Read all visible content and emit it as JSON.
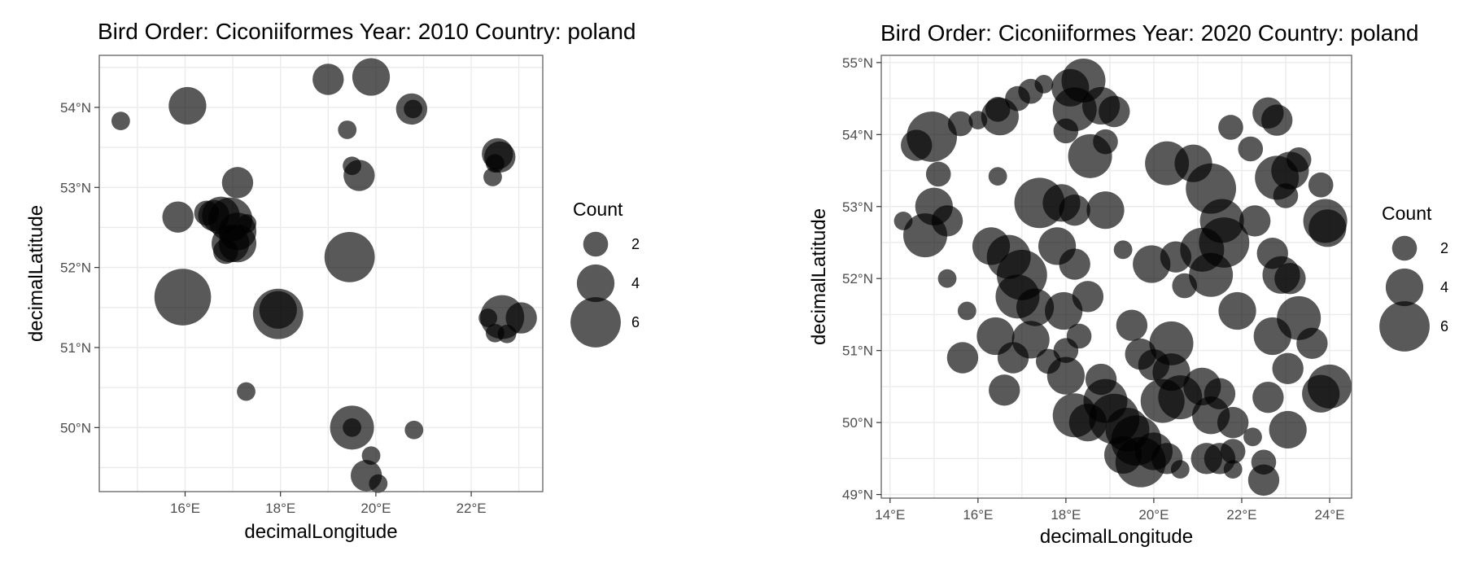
{
  "chart_data": [
    {
      "type": "scatter",
      "title": "Bird Order: Ciconiiformes Year: 2010 Country: poland",
      "xlabel": "decimalLongitude",
      "ylabel": "decimalLatitude",
      "xlim": [
        14.2,
        23.5
      ],
      "ylim": [
        49.2,
        54.65
      ],
      "xticks": [
        16,
        18,
        20,
        22
      ],
      "xtick_labels": [
        "16°E",
        "18°E",
        "20°E",
        "22°E"
      ],
      "yticks": [
        50,
        51,
        52,
        53,
        54
      ],
      "ytick_labels": [
        "50°N",
        "51°N",
        "52°N",
        "53°N",
        "54°N"
      ],
      "grid": true,
      "point_color": "#000000",
      "point_alpha": 0.65,
      "legend": {
        "title": "Count",
        "placement": "right",
        "sizes": [
          2,
          4,
          6
        ],
        "labels": [
          "2",
          "4",
          "6"
        ]
      },
      "points": [
        {
          "x": 14.65,
          "y": 53.83,
          "size": 1
        },
        {
          "x": 16.05,
          "y": 54.02,
          "size": 4
        },
        {
          "x": 19.0,
          "y": 54.35,
          "size": 3
        },
        {
          "x": 19.9,
          "y": 54.38,
          "size": 4
        },
        {
          "x": 20.75,
          "y": 53.98,
          "size": 3
        },
        {
          "x": 20.78,
          "y": 53.98,
          "size": 1
        },
        {
          "x": 19.4,
          "y": 53.72,
          "size": 1
        },
        {
          "x": 17.1,
          "y": 53.06,
          "size": 3
        },
        {
          "x": 19.5,
          "y": 53.27,
          "size": 1
        },
        {
          "x": 19.65,
          "y": 53.15,
          "size": 3
        },
        {
          "x": 22.55,
          "y": 53.42,
          "size": 3
        },
        {
          "x": 22.6,
          "y": 53.38,
          "size": 3
        },
        {
          "x": 22.5,
          "y": 53.3,
          "size": 1
        },
        {
          "x": 22.45,
          "y": 53.13,
          "size": 1
        },
        {
          "x": 15.85,
          "y": 52.63,
          "size": 3
        },
        {
          "x": 16.45,
          "y": 52.68,
          "size": 2
        },
        {
          "x": 16.6,
          "y": 52.65,
          "size": 3
        },
        {
          "x": 16.75,
          "y": 52.65,
          "size": 4
        },
        {
          "x": 16.95,
          "y": 52.6,
          "size": 5
        },
        {
          "x": 17.1,
          "y": 52.45,
          "size": 4
        },
        {
          "x": 17.3,
          "y": 52.55,
          "size": 1
        },
        {
          "x": 16.95,
          "y": 52.3,
          "size": 4
        },
        {
          "x": 17.1,
          "y": 52.3,
          "size": 4
        },
        {
          "x": 16.85,
          "y": 52.2,
          "size": 2
        },
        {
          "x": 19.45,
          "y": 52.13,
          "size": 6
        },
        {
          "x": 15.95,
          "y": 51.63,
          "size": 7
        },
        {
          "x": 17.95,
          "y": 51.42,
          "size": 6
        },
        {
          "x": 17.95,
          "y": 51.47,
          "size": 4
        },
        {
          "x": 22.35,
          "y": 51.37,
          "size": 1
        },
        {
          "x": 22.65,
          "y": 51.38,
          "size": 5
        },
        {
          "x": 23.05,
          "y": 51.37,
          "size": 3
        },
        {
          "x": 22.5,
          "y": 51.18,
          "size": 1
        },
        {
          "x": 22.75,
          "y": 51.17,
          "size": 1
        },
        {
          "x": 17.28,
          "y": 50.45,
          "size": 1
        },
        {
          "x": 19.5,
          "y": 50.0,
          "size": 5
        },
        {
          "x": 19.5,
          "y": 50.0,
          "size": 1
        },
        {
          "x": 20.8,
          "y": 49.97,
          "size": 1
        },
        {
          "x": 19.9,
          "y": 49.65,
          "size": 1
        },
        {
          "x": 19.8,
          "y": 49.4,
          "size": 3
        },
        {
          "x": 20.05,
          "y": 49.3,
          "size": 1
        }
      ]
    },
    {
      "type": "scatter",
      "title": "Bird Order: Ciconiiformes Year: 2020 Country: poland",
      "xlabel": "decimalLongitude",
      "ylabel": "decimalLatitude",
      "xlim": [
        13.8,
        24.5
      ],
      "ylim": [
        48.95,
        55.1
      ],
      "xticks": [
        14,
        16,
        18,
        20,
        22,
        24
      ],
      "xtick_labels": [
        "14°E",
        "16°E",
        "18°E",
        "20°E",
        "22°E",
        "24°E"
      ],
      "yticks": [
        49,
        50,
        51,
        52,
        53,
        54,
        55
      ],
      "ytick_labels": [
        "49°N",
        "50°N",
        "51°N",
        "52°N",
        "53°N",
        "54°N",
        "55°N"
      ],
      "grid": true,
      "point_color": "#000000",
      "point_alpha": 0.65,
      "legend": {
        "title": "Count",
        "placement": "right",
        "sizes": [
          2,
          4,
          6
        ],
        "labels": [
          "2",
          "4",
          "6"
        ]
      },
      "points": [
        {
          "x": 14.95,
          "y": 53.97,
          "size": 6
        },
        {
          "x": 14.6,
          "y": 53.85,
          "size": 3
        },
        {
          "x": 15.6,
          "y": 54.15,
          "size": 2
        },
        {
          "x": 16.0,
          "y": 54.2,
          "size": 1
        },
        {
          "x": 16.45,
          "y": 54.35,
          "size": 2
        },
        {
          "x": 16.5,
          "y": 54.25,
          "size": 4
        },
        {
          "x": 16.9,
          "y": 54.5,
          "size": 2
        },
        {
          "x": 17.2,
          "y": 54.6,
          "size": 2
        },
        {
          "x": 17.5,
          "y": 54.7,
          "size": 1
        },
        {
          "x": 18.1,
          "y": 54.65,
          "size": 4
        },
        {
          "x": 18.4,
          "y": 54.75,
          "size": 5
        },
        {
          "x": 18.8,
          "y": 54.4,
          "size": 4
        },
        {
          "x": 19.1,
          "y": 54.32,
          "size": 3
        },
        {
          "x": 18.2,
          "y": 54.35,
          "size": 5
        },
        {
          "x": 18.0,
          "y": 54.05,
          "size": 2
        },
        {
          "x": 18.55,
          "y": 53.7,
          "size": 5
        },
        {
          "x": 18.9,
          "y": 53.9,
          "size": 2
        },
        {
          "x": 15.1,
          "y": 53.45,
          "size": 2
        },
        {
          "x": 16.45,
          "y": 53.42,
          "size": 1
        },
        {
          "x": 15.0,
          "y": 53.0,
          "size": 4
        },
        {
          "x": 14.3,
          "y": 52.8,
          "size": 1
        },
        {
          "x": 14.8,
          "y": 52.6,
          "size": 5
        },
        {
          "x": 15.3,
          "y": 52.8,
          "size": 3
        },
        {
          "x": 16.3,
          "y": 52.45,
          "size": 4
        },
        {
          "x": 16.7,
          "y": 52.3,
          "size": 5
        },
        {
          "x": 17.0,
          "y": 52.05,
          "size": 6
        },
        {
          "x": 16.9,
          "y": 51.75,
          "size": 5
        },
        {
          "x": 17.3,
          "y": 51.6,
          "size": 4
        },
        {
          "x": 16.4,
          "y": 51.2,
          "size": 4
        },
        {
          "x": 16.8,
          "y": 50.9,
          "size": 3
        },
        {
          "x": 17.2,
          "y": 51.15,
          "size": 4
        },
        {
          "x": 15.65,
          "y": 50.9,
          "size": 3
        },
        {
          "x": 15.3,
          "y": 52.0,
          "size": 1
        },
        {
          "x": 15.75,
          "y": 51.55,
          "size": 1
        },
        {
          "x": 16.6,
          "y": 50.45,
          "size": 3
        },
        {
          "x": 17.4,
          "y": 53.05,
          "size": 6
        },
        {
          "x": 17.9,
          "y": 53.05,
          "size": 4
        },
        {
          "x": 18.2,
          "y": 52.95,
          "size": 3
        },
        {
          "x": 18.9,
          "y": 52.95,
          "size": 4
        },
        {
          "x": 17.8,
          "y": 52.45,
          "size": 4
        },
        {
          "x": 18.2,
          "y": 52.2,
          "size": 3
        },
        {
          "x": 18.5,
          "y": 51.75,
          "size": 3
        },
        {
          "x": 17.95,
          "y": 51.55,
          "size": 4
        },
        {
          "x": 18.3,
          "y": 51.2,
          "size": 2
        },
        {
          "x": 19.3,
          "y": 52.4,
          "size": 1
        },
        {
          "x": 19.5,
          "y": 51.35,
          "size": 3
        },
        {
          "x": 19.95,
          "y": 52.2,
          "size": 4
        },
        {
          "x": 20.3,
          "y": 53.6,
          "size": 5
        },
        {
          "x": 20.9,
          "y": 53.6,
          "size": 4
        },
        {
          "x": 21.3,
          "y": 53.25,
          "size": 6
        },
        {
          "x": 21.55,
          "y": 52.8,
          "size": 5
        },
        {
          "x": 21.1,
          "y": 52.4,
          "size": 5
        },
        {
          "x": 21.6,
          "y": 52.5,
          "size": 6
        },
        {
          "x": 21.3,
          "y": 52.05,
          "size": 5
        },
        {
          "x": 21.9,
          "y": 51.55,
          "size": 4
        },
        {
          "x": 20.5,
          "y": 52.3,
          "size": 3
        },
        {
          "x": 20.7,
          "y": 51.9,
          "size": 2
        },
        {
          "x": 22.3,
          "y": 52.8,
          "size": 3
        },
        {
          "x": 22.7,
          "y": 52.35,
          "size": 3
        },
        {
          "x": 22.9,
          "y": 52.05,
          "size": 4
        },
        {
          "x": 23.1,
          "y": 52.0,
          "size": 3
        },
        {
          "x": 22.8,
          "y": 53.4,
          "size": 5
        },
        {
          "x": 23.1,
          "y": 53.5,
          "size": 4
        },
        {
          "x": 23.3,
          "y": 53.65,
          "size": 2
        },
        {
          "x": 23.0,
          "y": 53.15,
          "size": 2
        },
        {
          "x": 23.8,
          "y": 53.3,
          "size": 2
        },
        {
          "x": 23.9,
          "y": 52.8,
          "size": 5
        },
        {
          "x": 23.95,
          "y": 52.7,
          "size": 4
        },
        {
          "x": 22.6,
          "y": 54.3,
          "size": 3
        },
        {
          "x": 22.8,
          "y": 54.2,
          "size": 3
        },
        {
          "x": 21.75,
          "y": 54.1,
          "size": 2
        },
        {
          "x": 22.2,
          "y": 53.8,
          "size": 2
        },
        {
          "x": 23.3,
          "y": 51.45,
          "size": 5
        },
        {
          "x": 22.7,
          "y": 51.2,
          "size": 4
        },
        {
          "x": 23.6,
          "y": 51.1,
          "size": 3
        },
        {
          "x": 23.05,
          "y": 50.75,
          "size": 3
        },
        {
          "x": 23.8,
          "y": 50.4,
          "size": 4
        },
        {
          "x": 24.0,
          "y": 50.5,
          "size": 5
        },
        {
          "x": 22.6,
          "y": 50.35,
          "size": 3
        },
        {
          "x": 23.05,
          "y": 49.9,
          "size": 4
        },
        {
          "x": 20.4,
          "y": 51.1,
          "size": 5
        },
        {
          "x": 20.4,
          "y": 50.7,
          "size": 4
        },
        {
          "x": 20.6,
          "y": 50.35,
          "size": 5
        },
        {
          "x": 20.2,
          "y": 50.3,
          "size": 5
        },
        {
          "x": 21.1,
          "y": 50.5,
          "size": 4
        },
        {
          "x": 21.5,
          "y": 50.4,
          "size": 3
        },
        {
          "x": 21.3,
          "y": 50.1,
          "size": 4
        },
        {
          "x": 21.8,
          "y": 50.0,
          "size": 3
        },
        {
          "x": 18.0,
          "y": 50.65,
          "size": 4
        },
        {
          "x": 18.2,
          "y": 50.1,
          "size": 5
        },
        {
          "x": 18.5,
          "y": 50.0,
          "size": 4
        },
        {
          "x": 18.9,
          "y": 50.3,
          "size": 5
        },
        {
          "x": 19.1,
          "y": 50.05,
          "size": 6
        },
        {
          "x": 19.4,
          "y": 49.9,
          "size": 5
        },
        {
          "x": 19.6,
          "y": 49.75,
          "size": 6
        },
        {
          "x": 19.7,
          "y": 49.45,
          "size": 6
        },
        {
          "x": 19.3,
          "y": 49.55,
          "size": 4
        },
        {
          "x": 20.0,
          "y": 49.6,
          "size": 4
        },
        {
          "x": 20.3,
          "y": 49.5,
          "size": 3
        },
        {
          "x": 20.6,
          "y": 49.35,
          "size": 1
        },
        {
          "x": 21.2,
          "y": 49.5,
          "size": 3
        },
        {
          "x": 21.5,
          "y": 49.5,
          "size": 3
        },
        {
          "x": 21.8,
          "y": 49.6,
          "size": 2
        },
        {
          "x": 22.25,
          "y": 49.8,
          "size": 1
        },
        {
          "x": 22.5,
          "y": 49.45,
          "size": 2
        },
        {
          "x": 22.5,
          "y": 49.2,
          "size": 3
        },
        {
          "x": 21.8,
          "y": 49.35,
          "size": 1
        },
        {
          "x": 20.0,
          "y": 50.8,
          "size": 3
        },
        {
          "x": 19.7,
          "y": 50.95,
          "size": 3
        },
        {
          "x": 18.8,
          "y": 50.6,
          "size": 3
        },
        {
          "x": 18.0,
          "y": 51.0,
          "size": 2
        },
        {
          "x": 17.6,
          "y": 50.85,
          "size": 2
        }
      ]
    }
  ]
}
